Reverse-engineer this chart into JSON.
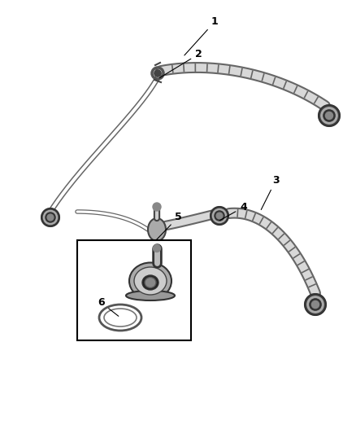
{
  "background_color": "#ffffff",
  "line_color": "#555555",
  "dark_color": "#333333",
  "figsize": [
    4.38,
    5.33
  ],
  "dpi": 100,
  "hose_outer_lw": 9,
  "hose_inner_lw": 6,
  "thin_hose_outer_lw": 5,
  "thin_hose_inner_lw": 3,
  "rib_lw": 1.0,
  "connector_dark": "#2a2a2a",
  "connector_mid": "#888888",
  "connector_light": "#cccccc"
}
